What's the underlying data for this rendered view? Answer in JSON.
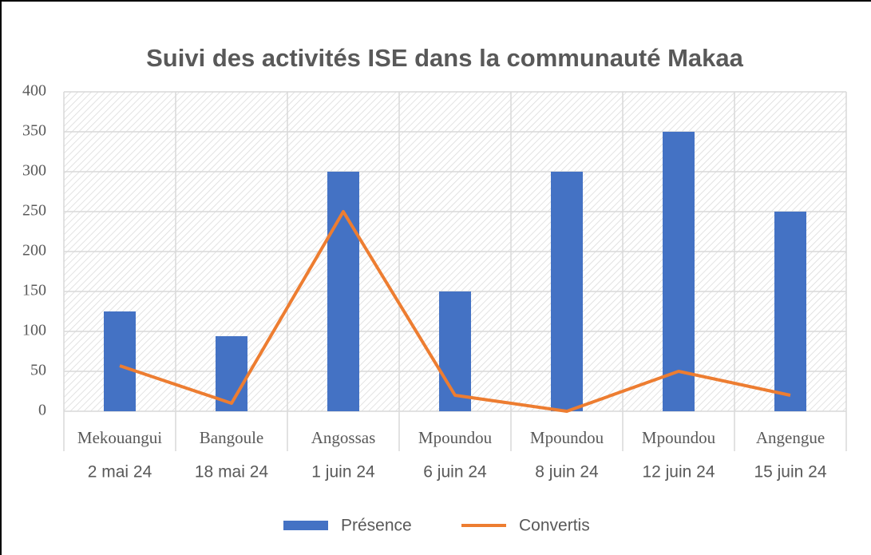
{
  "chart_data": {
    "type": "bar",
    "title": "Suivi des activités ISE dans la communauté Makaa",
    "category_groups": [
      "Mekouangui",
      "Bangoule",
      "Angossas",
      "Mpoundou",
      "Mpoundou",
      "Mpoundou",
      "Angengue"
    ],
    "categories": [
      "2 mai 24",
      "18 mai 24",
      "1 juin 24",
      "6 juin 24",
      "8 juin 24",
      "12 juin 24",
      "15 juin 24"
    ],
    "series": [
      {
        "name": "Présence",
        "type": "bar",
        "color": "#4472c4",
        "values": [
          125,
          94,
          300,
          150,
          300,
          350,
          250
        ]
      },
      {
        "name": "Convertis",
        "type": "line",
        "color": "#ed7d31",
        "values": [
          57,
          10,
          250,
          20,
          0,
          50,
          20
        ]
      }
    ],
    "ylim": [
      0,
      400
    ],
    "yticks": [
      0,
      50,
      100,
      150,
      200,
      250,
      300,
      350,
      400
    ],
    "grid": true,
    "legend": "bottom"
  }
}
